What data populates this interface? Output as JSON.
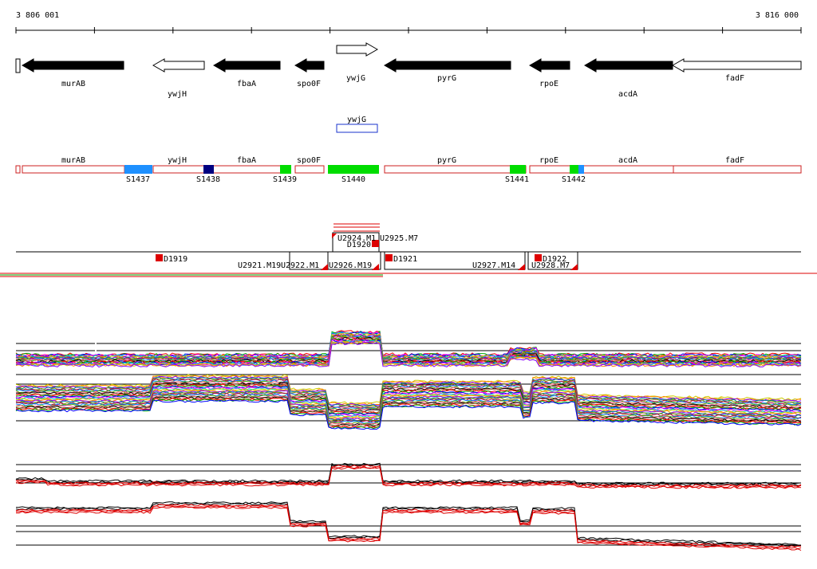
{
  "ruler": {
    "start_label": "3 806 001",
    "end_label": "3 816 000"
  },
  "colors": {
    "gene_fill": "#000000",
    "gene_outline": "#000000",
    "utr_outline": "#cc2222",
    "feature_box": "#1a33cc",
    "red": "#dd0000",
    "green_segment": "#00dd00",
    "light_blue_segment": "#1e90ff",
    "dark_blue_segment": "#000080",
    "profile_black": "#000000",
    "profile_red": "#dd0000"
  },
  "genes": [
    {
      "name": "murAB",
      "strand": "-",
      "fill": "black"
    },
    {
      "name": "ywjH",
      "strand": "-",
      "fill": "white"
    },
    {
      "name": "fbaA",
      "strand": "-",
      "fill": "black"
    },
    {
      "name": "spo0F",
      "strand": "-",
      "fill": "black"
    },
    {
      "name": "ywjG",
      "strand": "+",
      "fill": "white"
    },
    {
      "name": "pyrG",
      "strand": "-",
      "fill": "black"
    },
    {
      "name": "rpoE",
      "strand": "-",
      "fill": "black"
    },
    {
      "name": "acdA",
      "strand": "-",
      "fill": "black"
    },
    {
      "name": "fadF",
      "strand": "-",
      "fill": "white"
    }
  ],
  "feature_box": {
    "label": "ywjG"
  },
  "utr_track": {
    "gene_labels": [
      "murAB",
      "ywjH",
      "fbaA",
      "spo0F",
      "pyrG",
      "rpoE",
      "acdA",
      "fadF"
    ],
    "segments": [
      {
        "label": "S1437",
        "color": "light_blue"
      },
      {
        "label": "S1438",
        "color": "dark_blue"
      },
      {
        "label": "S1439",
        "color": "green"
      },
      {
        "label": "S1440",
        "color": "green"
      },
      {
        "label": "S1441",
        "color": "green"
      },
      {
        "label": "S1442",
        "color": "green_blue"
      }
    ]
  },
  "transcription_units": {
    "downshifts": [
      "D1919",
      "D1920",
      "D1921",
      "D1922"
    ],
    "upshifts": [
      "U2921.M19",
      "U2922.M1",
      "U2924.M1",
      "U2925.M7",
      "U2926.M19",
      "U2927.M14",
      "U2928.M7"
    ]
  },
  "expression_tracks": [
    {
      "name": "tiling-array-conditions-profile"
    },
    {
      "name": "replicate-profile"
    }
  ]
}
